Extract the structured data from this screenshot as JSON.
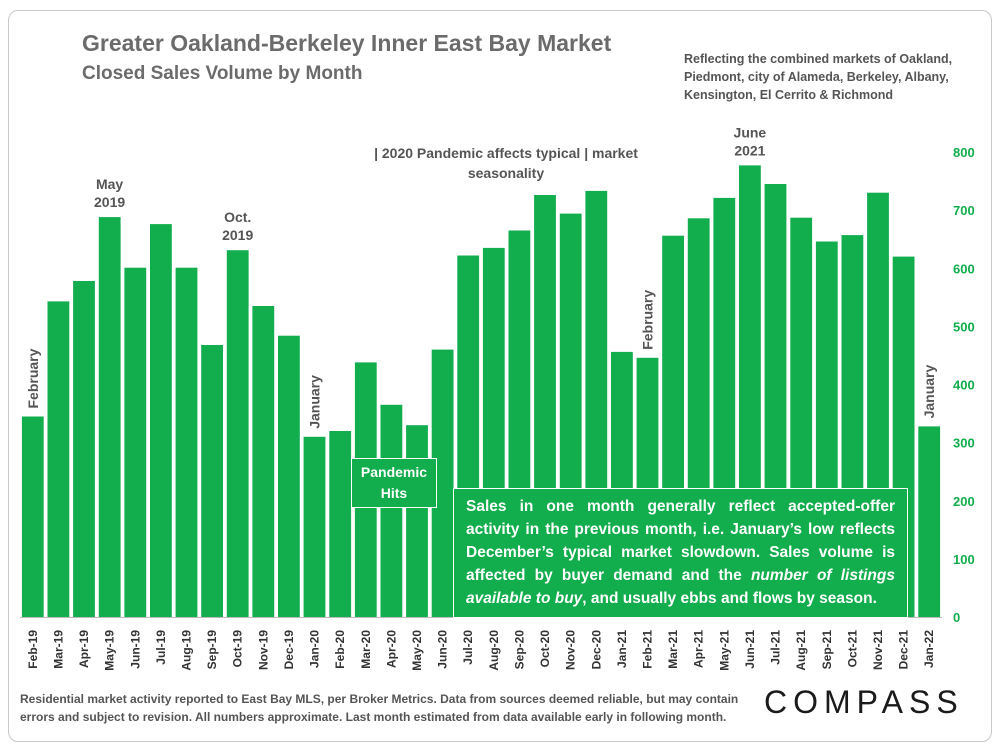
{
  "header": {
    "title": "Greater Oakland-Berkeley Inner East Bay Market",
    "subtitle": "Closed Sales Volume by Month",
    "note": "Reflecting the combined markets of Oakland, Piedmont, city of Alameda, Berkeley, Albany, Kensington, El Cerrito & Richmond"
  },
  "annotations": {
    "banner": "| 2020 Pandemic affects typical | market seasonality",
    "pandemic_hits": "Pandemic Hits",
    "callout_part1": "Sales in one month generally reflect accepted-offer activity in the previous month, i.e. January’s low reflects December’s typical market slowdown. Sales volume is affected by buyer demand and the ",
    "callout_italic": "number of listings available to buy",
    "callout_part2": ", and usually ebbs and flows by season.",
    "may2019": [
      "May",
      "2019"
    ],
    "oct2019": [
      "Oct.",
      "2019"
    ],
    "june2021": [
      "June",
      "2021"
    ],
    "february1": "February",
    "january1": "January",
    "february2": "February",
    "january2": "January"
  },
  "footer": {
    "text": "Residential market activity reported to East Bay MLS, per Broker Metrics. Data from sources deemed reliable, but may contain errors and subject to revision. All numbers approximate. Last month estimated from data available early in following month.",
    "logo": "COMPASS"
  },
  "colors": {
    "bar": "#12ad4c",
    "axis_label": "#12ad4c"
  },
  "chart_data": {
    "type": "bar",
    "title": "Closed Sales Volume by Month",
    "xlabel": "",
    "ylabel": "",
    "ylim": [
      0,
      800
    ],
    "yticks": [
      0,
      100,
      200,
      300,
      400,
      500,
      600,
      700,
      800
    ],
    "categories": [
      "Feb-19",
      "Mar-19",
      "Apr-19",
      "May-19",
      "Jun-19",
      "Jul-19",
      "Aug-19",
      "Sep-19",
      "Oct-19",
      "Nov-19",
      "Dec-19",
      "Jan-20",
      "Feb-20",
      "Mar-20",
      "Apr-20",
      "May-20",
      "Jun-20",
      "Jul-20",
      "Aug-20",
      "Sep-20",
      "Oct-20",
      "Nov-20",
      "Dec-20",
      "Jan-21",
      "Feb-21",
      "Mar-21",
      "Apr-21",
      "May-21",
      "Jun-21",
      "Jul-21",
      "Aug-21",
      "Sep-21",
      "Oct-21",
      "Nov-21",
      "Dec-21",
      "Jan-22"
    ],
    "values": [
      345,
      543,
      578,
      688,
      601,
      676,
      601,
      468,
      631,
      535,
      484,
      310,
      320,
      438,
      365,
      330,
      460,
      622,
      635,
      665,
      726,
      694,
      733,
      456,
      446,
      656,
      686,
      721,
      777,
      745,
      687,
      646,
      657,
      730,
      620,
      328
    ]
  }
}
